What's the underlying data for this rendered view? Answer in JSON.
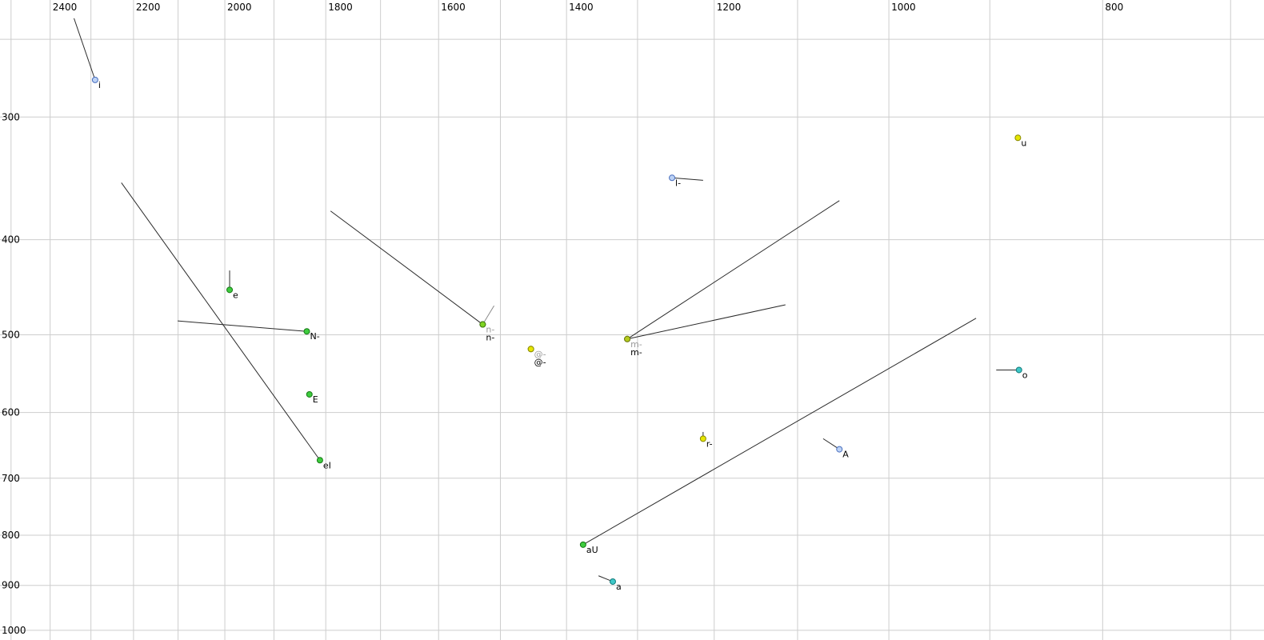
{
  "style": {
    "background": "#ffffff",
    "grid_color": "#cdcdcd",
    "vector_color": "#2a2a2a",
    "muted_vector_color": "#8a8a8a",
    "tick_label_color": "#000000",
    "point_label_color": "#000000",
    "muted_point_label_color": "#9a9a9a"
  },
  "chart_data": {
    "type": "scatter",
    "title": "",
    "xlabel": "",
    "ylabel": "",
    "legend": null,
    "grid": true,
    "x_axis": {
      "scale": "log",
      "reversed": true,
      "domain": [
        2529,
        676
      ],
      "tick_values": [
        2400,
        2200,
        2000,
        1800,
        1600,
        1400,
        1200,
        1000,
        800
      ],
      "grid_values": [
        2500,
        2400,
        2300,
        2200,
        2100,
        2000,
        1900,
        1800,
        1700,
        1600,
        1500,
        1400,
        1300,
        1200,
        1100,
        1000,
        900,
        800,
        700
      ]
    },
    "y_axis": {
      "scale": "log",
      "reversed": true,
      "domain": [
        228,
        1023
      ],
      "tick_values": [
        300,
        400,
        500,
        600,
        700,
        800,
        900,
        1000
      ],
      "grid_values": [
        250,
        300,
        400,
        500,
        600,
        700,
        800,
        900,
        1000
      ]
    },
    "points": [
      {
        "label": "i",
        "f2": 2290,
        "f1": 275,
        "fill": "#bcd2f5",
        "stroke": "#4a6fbe",
        "tail": {
          "f2": 2341,
          "f1": 238
        }
      },
      {
        "label": "u",
        "f2": 874,
        "f1": 315,
        "fill": "#e6e600",
        "stroke": "#8a8a00"
      },
      {
        "label": "l-",
        "f2": 1254,
        "f1": 346,
        "fill": "#bcd2f5",
        "stroke": "#4a6fbe",
        "tail": {
          "f2": 1214,
          "f1": 348
        }
      },
      {
        "label": "e",
        "f2": 1990,
        "f1": 450,
        "fill": "#3ecc3e",
        "stroke": "#157815",
        "tail": {
          "f2": 1990,
          "f1": 430
        }
      },
      {
        "label": "N-",
        "f2": 1836,
        "f1": 496,
        "fill": "#3ecc3e",
        "stroke": "#157815",
        "tail": {
          "f2": 2101,
          "f1": 484
        }
      },
      {
        "label": "n-",
        "label_row": 0,
        "muted": true,
        "f2": 1528,
        "f1": 488,
        "fill": "#7ed321",
        "stroke": "#3f7a10",
        "tail": {
          "f2": 1510,
          "f1": 467
        },
        "tail_muted": true
      },
      {
        "label": "n-",
        "label_row": 1,
        "f2": 1528,
        "f1": 488,
        "fill": "#7ed321",
        "stroke": "#3f7a10",
        "tail": {
          "f2": 1791,
          "f1": 374
        }
      },
      {
        "label": "@-",
        "label_row": 0,
        "muted": true,
        "f2": 1453,
        "f1": 517,
        "fill": "#e6e600",
        "stroke": "#8a8a00"
      },
      {
        "label": "@-",
        "label_row": 1,
        "f2": 1453,
        "f1": 517,
        "fill": "#e6e600",
        "stroke": "#8a8a00"
      },
      {
        "label": "m-",
        "label_row": 0,
        "muted": true,
        "f2": 1314,
        "f1": 505,
        "fill": "#b5cc1e",
        "stroke": "#6d7a12",
        "tail": {
          "f2": 1114,
          "f1": 466
        }
      },
      {
        "label": "m-",
        "label_row": 1,
        "f2": 1314,
        "f1": 505,
        "fill": "#b5cc1e",
        "stroke": "#6d7a12",
        "tail": {
          "f2": 1053,
          "f1": 365
        }
      },
      {
        "label": "o",
        "f2": 873,
        "f1": 543,
        "fill": "#3ec8c8",
        "stroke": "#127a7a",
        "tail": {
          "f2": 894,
          "f1": 543
        }
      },
      {
        "label": "E",
        "f2": 1831,
        "f1": 575,
        "fill": "#3ecc3e",
        "stroke": "#157815"
      },
      {
        "label": "eI",
        "f2": 1811,
        "f1": 671,
        "fill": "#3ecc3e",
        "stroke": "#157815",
        "tail": {
          "f2": 2228,
          "f1": 350
        }
      },
      {
        "label": "r-",
        "f2": 1214,
        "f1": 638,
        "fill": "#e6e600",
        "stroke": "#8a8a00",
        "tail": {
          "f2": 1214,
          "f1": 628
        }
      },
      {
        "label": "A",
        "f2": 1053,
        "f1": 654,
        "fill": "#bcd2f5",
        "stroke": "#4a6fbe",
        "tail": {
          "f2": 1071,
          "f1": 638
        }
      },
      {
        "label": "aU",
        "f2": 1376,
        "f1": 818,
        "fill": "#3ecc3e",
        "stroke": "#157815",
        "tail": {
          "f2": 913,
          "f1": 481
        }
      },
      {
        "label": "a",
        "f2": 1334,
        "f1": 892,
        "fill": "#3ec8c8",
        "stroke": "#127a7a",
        "tail": {
          "f2": 1354,
          "f1": 880
        }
      }
    ]
  }
}
